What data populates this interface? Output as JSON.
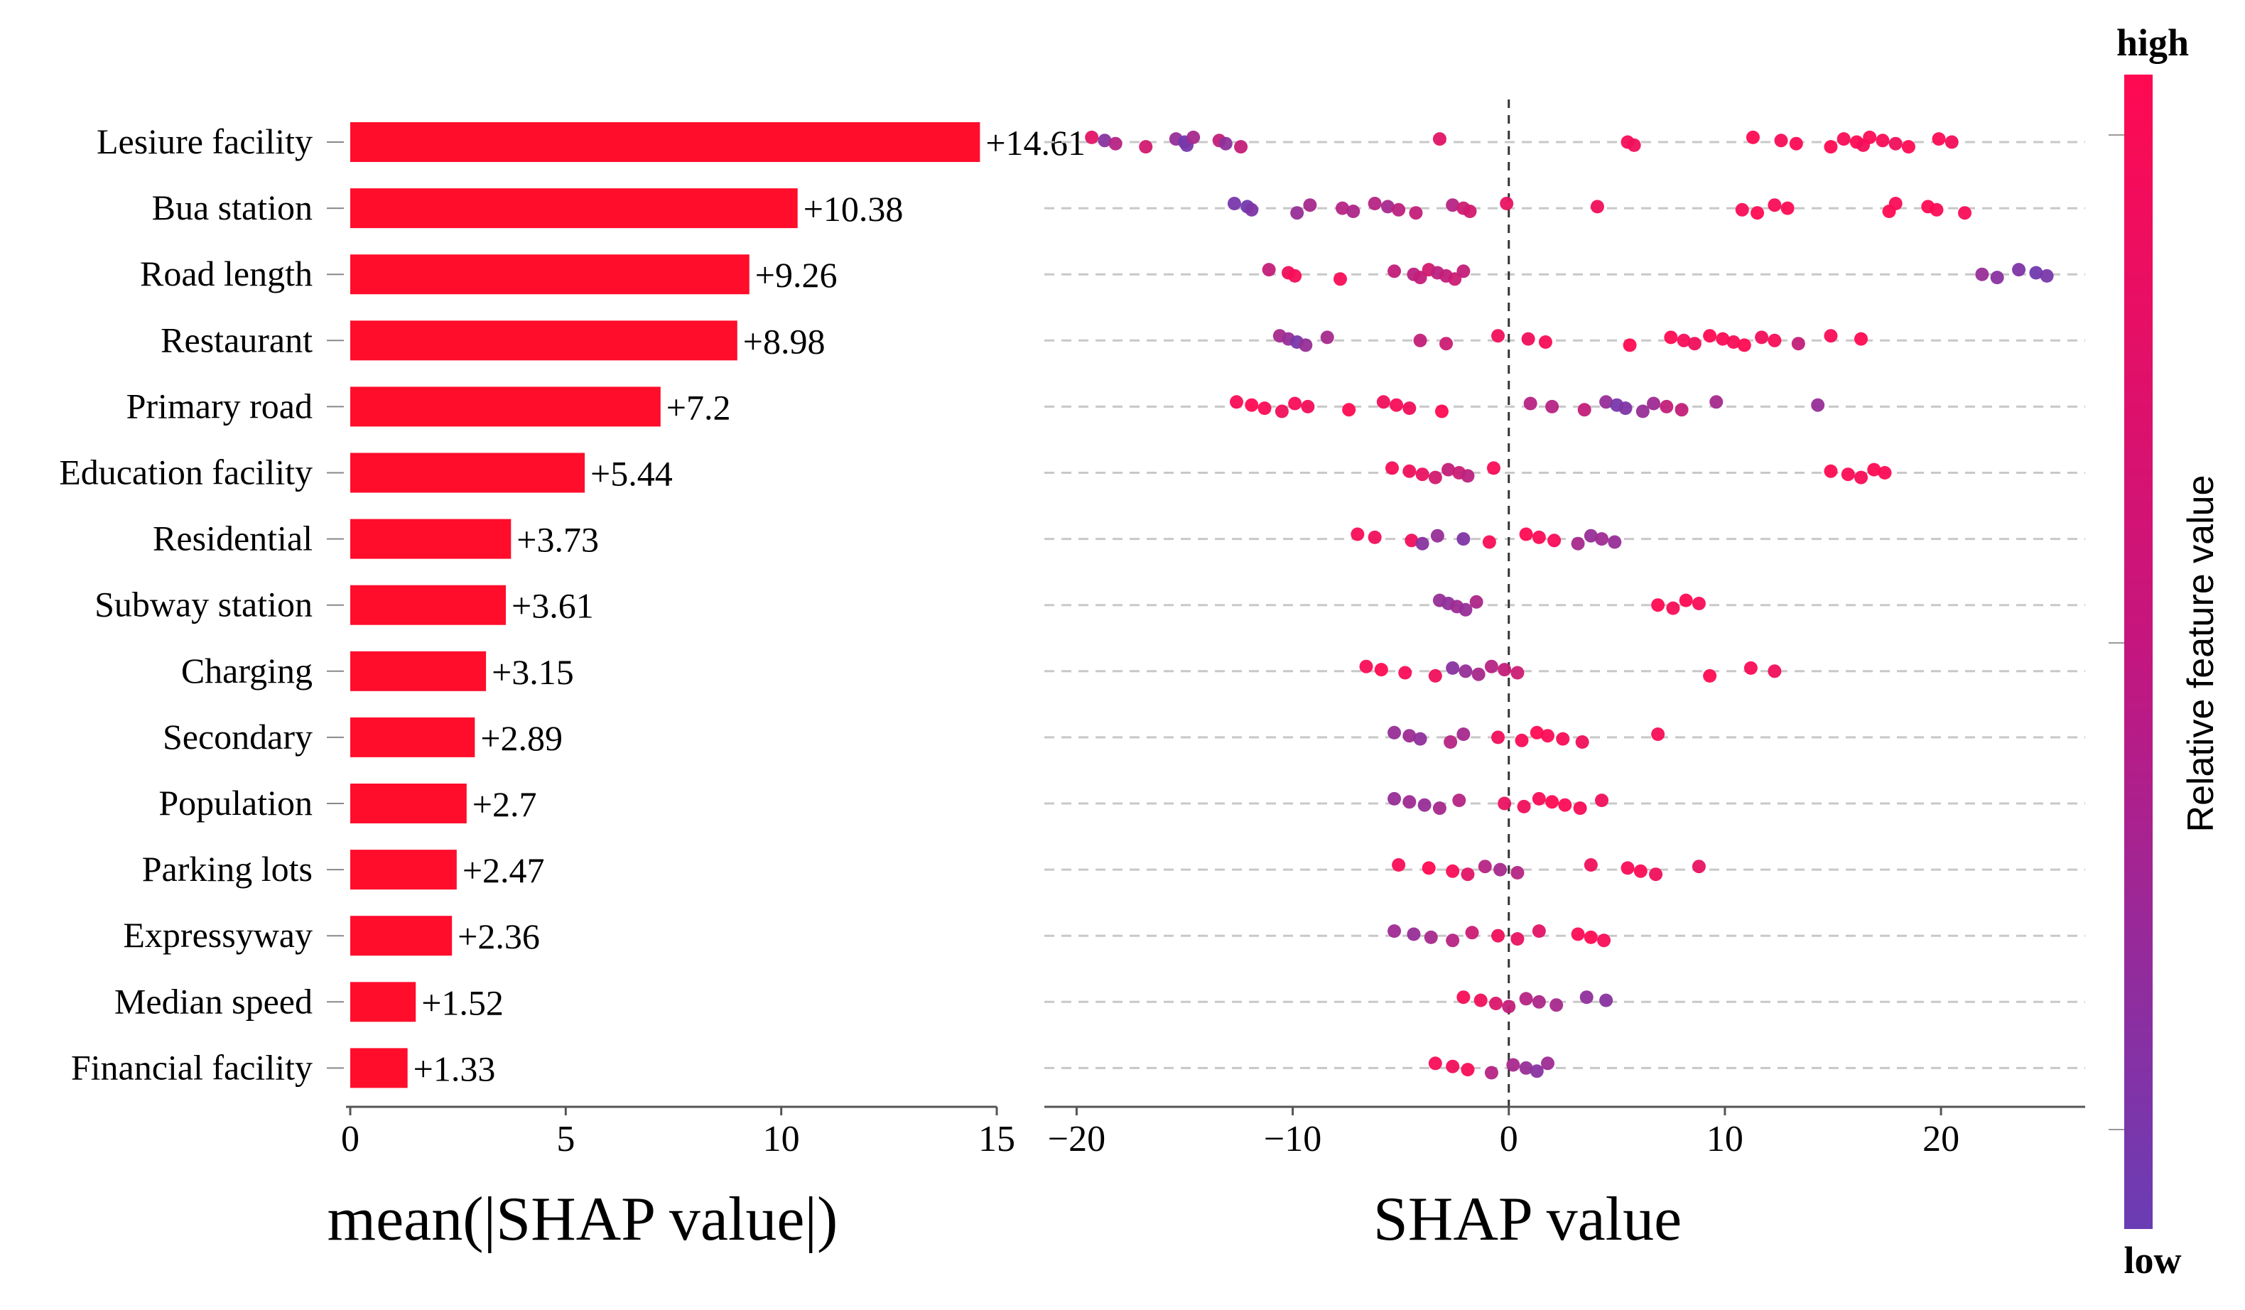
{
  "chart_data": [
    {
      "type": "bar",
      "orientation": "horizontal",
      "categories": [
        "Lesiure facility",
        "Bua station",
        "Road length",
        "Restaurant",
        "Primary road",
        "Education facility",
        "Residential",
        "Subway station",
        "Charging",
        "Secondary",
        "Population",
        "Parking lots",
        "Expressyway",
        "Median speed",
        "Financial facility"
      ],
      "values": [
        14.61,
        10.38,
        9.26,
        8.98,
        7.2,
        5.44,
        3.73,
        3.61,
        3.15,
        2.89,
        2.7,
        2.47,
        2.36,
        1.52,
        1.33
      ],
      "value_labels": [
        "+14.61",
        "+10.38",
        "+9.26",
        "+8.98",
        "+7.2",
        "+5.44",
        "+3.73",
        "+3.61",
        "+3.15",
        "+2.89",
        "+2.7",
        "+2.47",
        "+2.36",
        "+1.52",
        "+1.33"
      ],
      "xlabel": "mean(|SHAP value|)",
      "xlim": [
        0,
        15
      ],
      "xticks": [
        0,
        5,
        10,
        15
      ],
      "xtick_labels": [
        "0",
        "5",
        "10",
        "15"
      ],
      "bar_color": "#ff0d2b"
    },
    {
      "type": "scatter",
      "subtype": "beeswarm",
      "xlabel": "SHAP value",
      "xlim": [
        -21,
        27
      ],
      "xticks": [
        -20,
        -10,
        0,
        10,
        20
      ],
      "xtick_labels": [
        "−20",
        "−10",
        "0",
        "10",
        "20"
      ],
      "zero_line": "dashed",
      "colorbar": {
        "title": "Relative feature value",
        "high_label": "high",
        "low_label": "low",
        "high_color": "#ff0a52",
        "low_color": "#6a3db4"
      },
      "rows": [
        {
          "feature": "Lesiure facility",
          "points": [
            [
              -19.3,
              0.8
            ],
            [
              -18.7,
              0.2
            ],
            [
              -18.2,
              0.5
            ],
            [
              -16.8,
              0.7
            ],
            [
              -15.4,
              0.3
            ],
            [
              -15.0,
              0.05
            ],
            [
              -14.9,
              0.1
            ],
            [
              -14.6,
              0.4
            ],
            [
              -13.4,
              0.6
            ],
            [
              -13.1,
              0.25
            ],
            [
              -12.4,
              0.6
            ],
            [
              -3.2,
              0.8
            ],
            [
              5.5,
              0.95
            ],
            [
              5.8,
              0.9
            ],
            [
              11.3,
              1.0
            ],
            [
              12.6,
              0.95
            ],
            [
              13.3,
              0.98
            ],
            [
              14.9,
              1.0
            ],
            [
              15.5,
              0.95
            ],
            [
              16.1,
              1.0
            ],
            [
              16.4,
              0.92
            ],
            [
              16.7,
              0.97
            ],
            [
              17.3,
              0.95
            ],
            [
              17.9,
              0.9
            ],
            [
              18.5,
              1.0
            ],
            [
              19.9,
              0.97
            ],
            [
              20.5,
              0.92
            ]
          ]
        },
        {
          "feature": "Bua station",
          "points": [
            [
              -12.7,
              0.1
            ],
            [
              -12.1,
              0.05
            ],
            [
              -11.9,
              0.15
            ],
            [
              -9.8,
              0.3
            ],
            [
              -9.2,
              0.4
            ],
            [
              -7.7,
              0.5
            ],
            [
              -7.2,
              0.45
            ],
            [
              -6.2,
              0.5
            ],
            [
              -5.6,
              0.4
            ],
            [
              -5.1,
              0.55
            ],
            [
              -4.3,
              0.6
            ],
            [
              -2.6,
              0.5
            ],
            [
              -2.1,
              0.65
            ],
            [
              -1.8,
              0.7
            ],
            [
              -0.1,
              0.85
            ],
            [
              4.1,
              0.9
            ],
            [
              10.8,
              0.95
            ],
            [
              11.5,
              1.0
            ],
            [
              12.3,
              0.95
            ],
            [
              12.9,
              0.98
            ],
            [
              17.6,
              1.0
            ],
            [
              17.9,
              0.95
            ],
            [
              19.4,
              1.0
            ],
            [
              19.8,
              0.97
            ],
            [
              21.1,
              0.95
            ]
          ]
        },
        {
          "feature": "Road length",
          "points": [
            [
              -11.1,
              0.6
            ],
            [
              -10.2,
              0.9
            ],
            [
              -9.9,
              0.95
            ],
            [
              -7.8,
              0.95
            ],
            [
              -5.3,
              0.6
            ],
            [
              -4.4,
              0.55
            ],
            [
              -4.1,
              0.6
            ],
            [
              -3.7,
              0.7
            ],
            [
              -3.3,
              0.55
            ],
            [
              -2.9,
              0.6
            ],
            [
              -2.5,
              0.65
            ],
            [
              -2.1,
              0.6
            ],
            [
              21.9,
              0.3
            ],
            [
              22.6,
              0.2
            ],
            [
              23.6,
              0.15
            ],
            [
              24.4,
              0.05
            ],
            [
              24.9,
              0.1
            ]
          ]
        },
        {
          "feature": "Restaurant",
          "points": [
            [
              -10.6,
              0.4
            ],
            [
              -10.2,
              0.3
            ],
            [
              -9.8,
              0.1
            ],
            [
              -9.4,
              0.3
            ],
            [
              -8.4,
              0.4
            ],
            [
              -4.1,
              0.6
            ],
            [
              -2.9,
              0.65
            ],
            [
              -0.5,
              0.9
            ],
            [
              0.9,
              0.9
            ],
            [
              1.7,
              0.95
            ],
            [
              5.6,
              1.0
            ],
            [
              7.5,
              1.0
            ],
            [
              8.1,
              0.95
            ],
            [
              8.6,
              0.9
            ],
            [
              9.3,
              1.0
            ],
            [
              9.9,
              0.97
            ],
            [
              10.4,
              0.95
            ],
            [
              10.9,
              1.0
            ],
            [
              11.7,
              0.9
            ],
            [
              12.3,
              0.95
            ],
            [
              13.4,
              0.6
            ],
            [
              14.9,
              0.95
            ],
            [
              16.3,
              1.0
            ]
          ]
        },
        {
          "feature": "Primary road",
          "points": [
            [
              -12.6,
              0.95
            ],
            [
              -11.9,
              1.0
            ],
            [
              -11.3,
              0.97
            ],
            [
              -10.5,
              0.9
            ],
            [
              -9.9,
              0.95
            ],
            [
              -9.3,
              0.92
            ],
            [
              -7.4,
              1.0
            ],
            [
              -5.8,
              0.9
            ],
            [
              -5.2,
              0.95
            ],
            [
              -4.6,
              0.9
            ],
            [
              -3.1,
              1.0
            ],
            [
              1.0,
              0.5
            ],
            [
              2.0,
              0.5
            ],
            [
              3.5,
              0.6
            ],
            [
              4.5,
              0.3
            ],
            [
              5.0,
              0.1
            ],
            [
              5.4,
              0.15
            ],
            [
              6.2,
              0.3
            ],
            [
              6.7,
              0.35
            ],
            [
              7.3,
              0.6
            ],
            [
              8.0,
              0.6
            ],
            [
              9.6,
              0.4
            ],
            [
              14.3,
              0.3
            ]
          ]
        },
        {
          "feature": "Education facility",
          "points": [
            [
              -5.4,
              0.95
            ],
            [
              -4.6,
              0.9
            ],
            [
              -4.0,
              0.85
            ],
            [
              -3.4,
              0.7
            ],
            [
              -2.8,
              0.6
            ],
            [
              -2.3,
              0.65
            ],
            [
              -1.9,
              0.55
            ],
            [
              -0.7,
              0.95
            ],
            [
              14.9,
              1.0
            ],
            [
              15.7,
              0.97
            ],
            [
              16.3,
              0.95
            ],
            [
              16.9,
              1.0
            ],
            [
              17.4,
              0.97
            ]
          ]
        },
        {
          "feature": "Residential",
          "points": [
            [
              -7.0,
              0.95
            ],
            [
              -6.2,
              0.9
            ],
            [
              -4.5,
              0.9
            ],
            [
              -4.0,
              0.2
            ],
            [
              -3.3,
              0.3
            ],
            [
              -2.1,
              0.15
            ],
            [
              -0.9,
              0.95
            ],
            [
              0.8,
              1.0
            ],
            [
              1.4,
              0.97
            ],
            [
              2.1,
              0.95
            ],
            [
              3.2,
              0.4
            ],
            [
              3.8,
              0.3
            ],
            [
              4.3,
              0.35
            ],
            [
              4.9,
              0.3
            ]
          ]
        },
        {
          "feature": "Subway station",
          "points": [
            [
              -3.2,
              0.3
            ],
            [
              -2.8,
              0.25
            ],
            [
              -2.4,
              0.35
            ],
            [
              -2.0,
              0.3
            ],
            [
              -1.5,
              0.45
            ],
            [
              6.9,
              1.0
            ],
            [
              7.6,
              0.95
            ],
            [
              8.2,
              1.0
            ],
            [
              8.8,
              0.95
            ]
          ]
        },
        {
          "feature": "Charging",
          "points": [
            [
              -6.6,
              0.95
            ],
            [
              -5.9,
              1.0
            ],
            [
              -4.8,
              0.95
            ],
            [
              -3.4,
              0.9
            ],
            [
              -2.6,
              0.2
            ],
            [
              -2.0,
              0.3
            ],
            [
              -1.4,
              0.4
            ],
            [
              -0.8,
              0.5
            ],
            [
              -0.2,
              0.6
            ],
            [
              0.4,
              0.65
            ],
            [
              9.3,
              1.0
            ],
            [
              11.2,
              0.95
            ],
            [
              12.3,
              0.9
            ]
          ]
        },
        {
          "feature": "Secondary",
          "points": [
            [
              -5.3,
              0.3
            ],
            [
              -4.6,
              0.35
            ],
            [
              -4.1,
              0.25
            ],
            [
              -2.7,
              0.5
            ],
            [
              -2.1,
              0.4
            ],
            [
              -0.5,
              0.9
            ],
            [
              0.6,
              0.95
            ],
            [
              1.3,
              1.0
            ],
            [
              1.8,
              0.97
            ],
            [
              2.5,
              0.95
            ],
            [
              3.4,
              0.9
            ],
            [
              6.9,
              0.95
            ]
          ]
        },
        {
          "feature": "Population",
          "points": [
            [
              -5.3,
              0.3
            ],
            [
              -4.6,
              0.35
            ],
            [
              -3.9,
              0.3
            ],
            [
              -3.2,
              0.4
            ],
            [
              -2.3,
              0.5
            ],
            [
              -0.2,
              0.85
            ],
            [
              0.7,
              0.9
            ],
            [
              1.4,
              0.95
            ],
            [
              2.0,
              1.0
            ],
            [
              2.6,
              0.97
            ],
            [
              3.3,
              0.95
            ],
            [
              4.3,
              0.9
            ]
          ]
        },
        {
          "feature": "Parking lots",
          "points": [
            [
              -5.1,
              0.95
            ],
            [
              -3.7,
              1.0
            ],
            [
              -2.6,
              0.95
            ],
            [
              -1.9,
              0.8
            ],
            [
              -1.1,
              0.5
            ],
            [
              -0.4,
              0.4
            ],
            [
              0.4,
              0.5
            ],
            [
              3.8,
              0.9
            ],
            [
              5.5,
              0.95
            ],
            [
              6.1,
              0.97
            ],
            [
              6.8,
              0.9
            ],
            [
              8.8,
              0.85
            ]
          ]
        },
        {
          "feature": "Expressyway",
          "points": [
            [
              -5.3,
              0.35
            ],
            [
              -4.4,
              0.3
            ],
            [
              -3.6,
              0.4
            ],
            [
              -2.6,
              0.5
            ],
            [
              -1.7,
              0.65
            ],
            [
              -0.5,
              0.9
            ],
            [
              0.4,
              0.85
            ],
            [
              1.4,
              0.8
            ],
            [
              3.2,
              0.97
            ],
            [
              3.8,
              1.0
            ],
            [
              4.4,
              0.95
            ]
          ]
        },
        {
          "feature": "Median speed",
          "points": [
            [
              -2.1,
              0.95
            ],
            [
              -1.3,
              0.9
            ],
            [
              -0.6,
              0.75
            ],
            [
              0.0,
              0.6
            ],
            [
              0.8,
              0.5
            ],
            [
              1.4,
              0.45
            ],
            [
              2.2,
              0.4
            ],
            [
              3.6,
              0.25
            ],
            [
              4.5,
              0.2
            ]
          ]
        },
        {
          "feature": "Financial facility",
          "points": [
            [
              -3.4,
              0.95
            ],
            [
              -2.6,
              0.9
            ],
            [
              -1.9,
              0.95
            ],
            [
              -0.8,
              0.5
            ],
            [
              0.2,
              0.4
            ],
            [
              0.8,
              0.3
            ],
            [
              1.3,
              0.2
            ],
            [
              1.8,
              0.35
            ]
          ]
        }
      ]
    }
  ]
}
